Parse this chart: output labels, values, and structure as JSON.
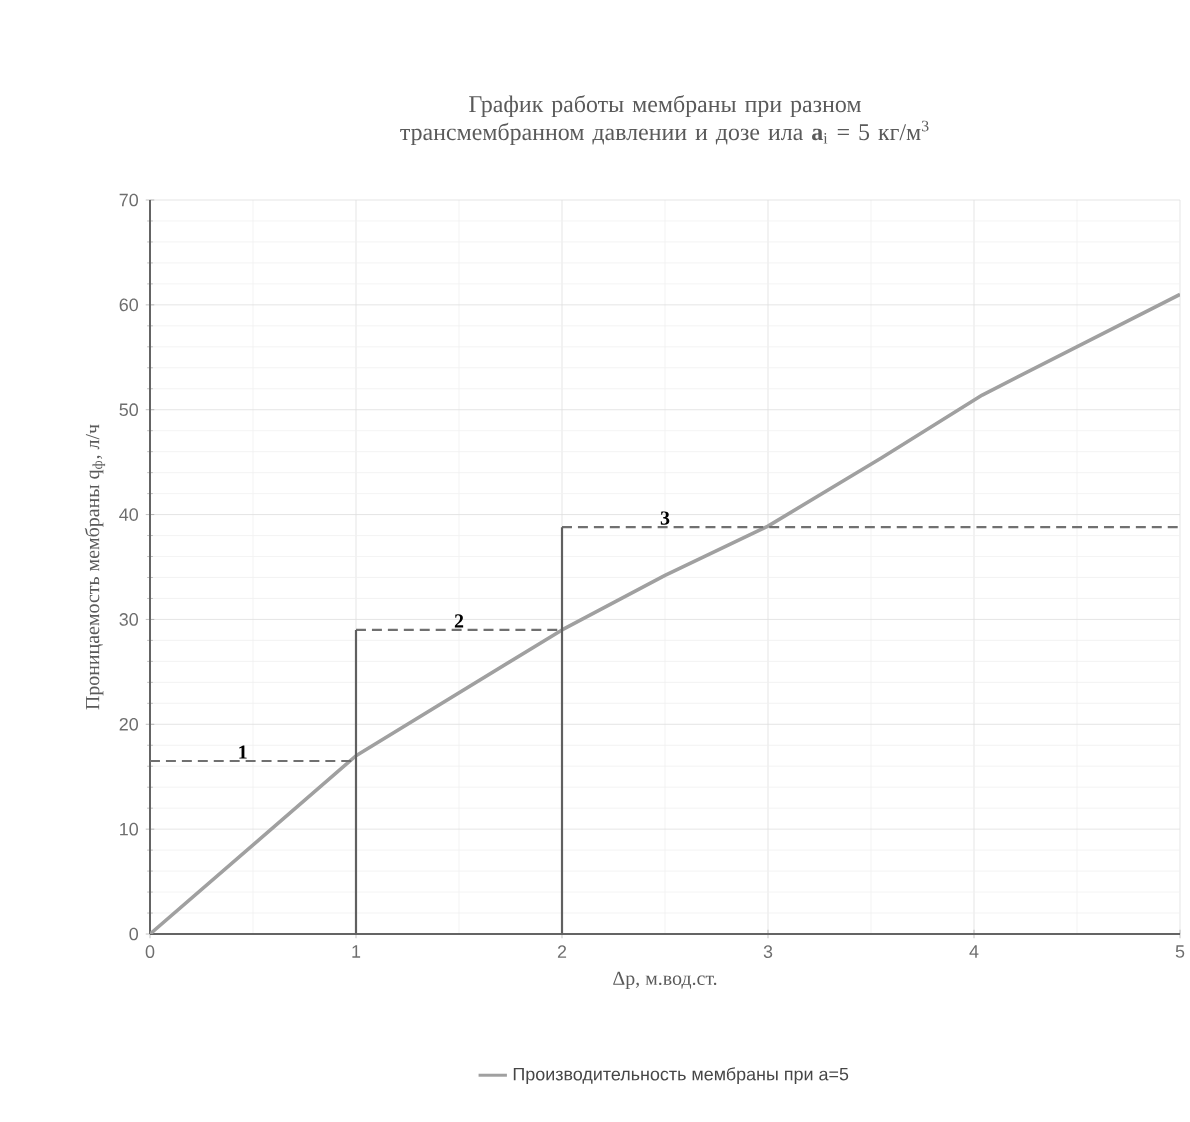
{
  "chart_data": {
    "type": "line",
    "title": "График работы мембраны при разном трансмембранном давлении и дозе ила **a**$_{i}$ = 5 кг/м$^{3}$",
    "xlabel": "Δp, м.вод.ст.",
    "ylabel": "Проницаемость мембраны q$_{ф}$, л/ч",
    "xlim": [
      0,
      5
    ],
    "ylim": [
      0,
      70
    ],
    "xticks": [
      0,
      1,
      2,
      3,
      4,
      5
    ],
    "yticks": [
      0,
      10,
      20,
      30,
      40,
      50,
      60,
      70
    ],
    "grid": true,
    "legend": "bottom",
    "marker": "none",
    "series": [
      {
        "name": "Производительность мембраны при a=5",
        "color": "#a0a0a0",
        "x": [
          0,
          1,
          2,
          2.5,
          3,
          3.55,
          4.04,
          5
        ],
        "values": [
          0,
          17,
          29,
          34.2,
          38.9,
          45.4,
          51.4,
          61
        ]
      },
      {
        "color": "#707070",
        "line_style": "dashed",
        "x": [
          0,
          1
        ],
        "values": [
          16.5,
          16.5
        ]
      },
      {
        "color": "#707070",
        "line_style": "dashed",
        "x": [
          1,
          2
        ],
        "values": [
          29,
          29
        ]
      },
      {
        "color": "#707070",
        "line_style": "dashed",
        "x": [
          2,
          5
        ],
        "values": [
          38.8,
          38.8
        ]
      },
      {
        "color": "#606060",
        "line_style": "solid",
        "x": [
          1,
          1
        ],
        "values": [
          0,
          29
        ]
      },
      {
        "color": "#606060",
        "line_style": "solid",
        "x": [
          2,
          2
        ],
        "values": [
          0,
          38.8
        ]
      }
    ],
    "annotations": [
      {
        "text": "1",
        "x": 0.45,
        "y": 16.5
      },
      {
        "text": "2",
        "x": 1.5,
        "y": 29
      },
      {
        "text": "3",
        "x": 2.5,
        "y": 38.8
      }
    ]
  }
}
